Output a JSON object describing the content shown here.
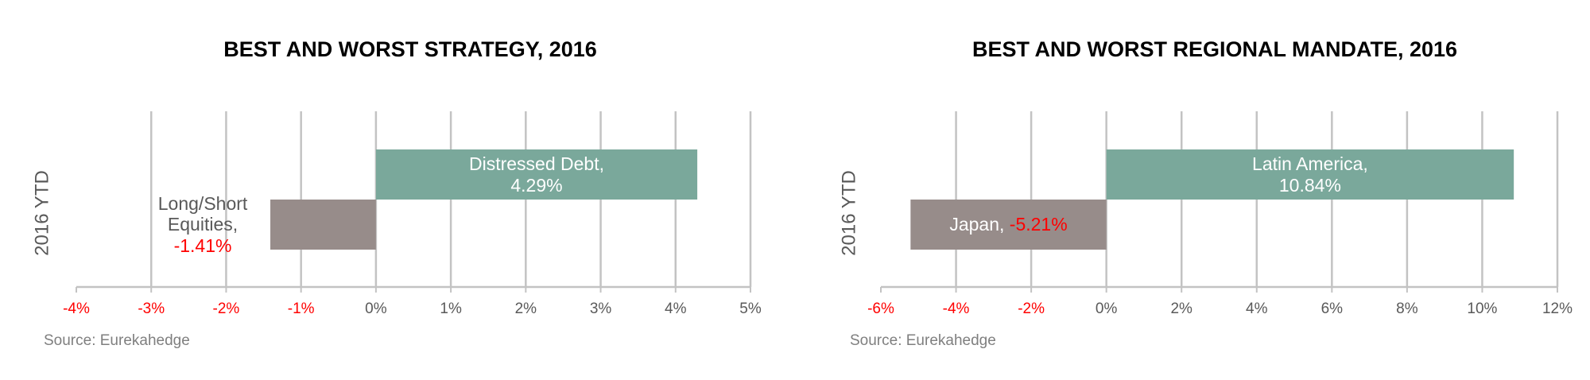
{
  "chart_data": [
    {
      "type": "barh",
      "title": "BEST AND WORST STRATEGY, 2016",
      "ylabel": "2016 YTD",
      "categories": [
        "Distressed Debt,",
        "Long/Short Equities,"
      ],
      "values": [
        4.29,
        -1.41
      ],
      "value_labels": [
        "4.29%",
        "-1.41%"
      ],
      "colors": [
        "#7aa89b",
        "#978c8a"
      ],
      "negative_color": "#ff0000",
      "xlim": [
        -4,
        5
      ],
      "xticks": [
        {
          "value": -4,
          "label": "-4%"
        },
        {
          "value": -3,
          "label": "-3%"
        },
        {
          "value": -2,
          "label": "-2%"
        },
        {
          "value": -1,
          "label": "-1%"
        },
        {
          "value": 0,
          "label": "0%"
        },
        {
          "value": 1,
          "label": "1%"
        },
        {
          "value": 2,
          "label": "2%"
        },
        {
          "value": 3,
          "label": "3%"
        },
        {
          "value": 4,
          "label": "4%"
        },
        {
          "value": 5,
          "label": "5%"
        }
      ],
      "grid": true,
      "source": "Source: Eurekahedge"
    },
    {
      "type": "barh",
      "title": "BEST AND WORST REGIONAL MANDATE, 2016",
      "ylabel": "2016 YTD",
      "categories": [
        "Latin America,",
        "Japan,"
      ],
      "values": [
        10.84,
        -5.21
      ],
      "value_labels": [
        "10.84%",
        "-5.21%"
      ],
      "colors": [
        "#7aa89b",
        "#978c8a"
      ],
      "negative_color": "#ff0000",
      "xlim": [
        -6,
        12
      ],
      "xticks": [
        {
          "value": -6,
          "label": "-6%"
        },
        {
          "value": -4,
          "label": "-4%"
        },
        {
          "value": -2,
          "label": "-2%"
        },
        {
          "value": 0,
          "label": "0%"
        },
        {
          "value": 2,
          "label": "2%"
        },
        {
          "value": 4,
          "label": "4%"
        },
        {
          "value": 6,
          "label": "6%"
        },
        {
          "value": 8,
          "label": "8%"
        },
        {
          "value": 10,
          "label": "10%"
        },
        {
          "value": 12,
          "label": "12%"
        }
      ],
      "grid": true,
      "source": "Source: Eurekahedge"
    }
  ]
}
